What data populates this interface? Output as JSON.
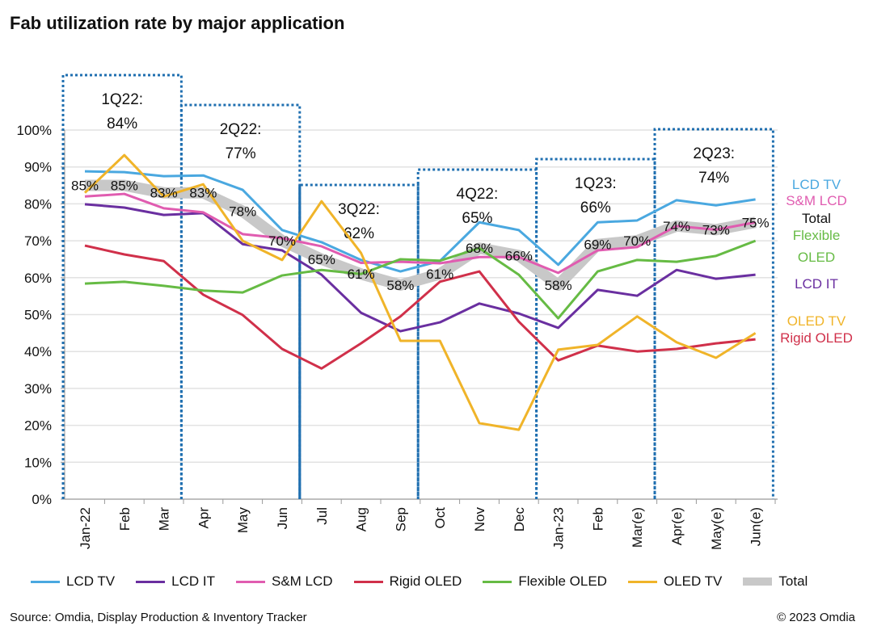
{
  "title": "Fab utilization rate by major application",
  "source": "Source: Omdia, Display Production & Inventory Tracker",
  "copyright": "© 2023 Omdia",
  "chart_data": {
    "type": "line",
    "title": "Fab utilization rate by major application",
    "categories": [
      "Jan-22",
      "Feb",
      "Mar",
      "Apr",
      "May",
      "Jun",
      "Jul",
      "Aug",
      "Sep",
      "Oct",
      "Nov",
      "Dec",
      "Jan-23",
      "Feb",
      "Mar(e)",
      "Apr(e)",
      "May(e)",
      "Jun(e)"
    ],
    "y_ticks": [
      "0%",
      "10%",
      "20%",
      "30%",
      "40%",
      "50%",
      "60%",
      "70%",
      "80%",
      "90%",
      "100%"
    ],
    "ylim": [
      0,
      100
    ],
    "grid": true,
    "legend": "bottom",
    "series": [
      {
        "name": "LCD TV",
        "color": "#4aa8e0",
        "end_label": "LCD TV",
        "values": [
          88.8,
          88.6,
          87.5,
          87.7,
          83.8,
          72.9,
          69.6,
          64.8,
          61.7,
          64.5,
          75,
          72.9,
          63.5,
          75,
          75.5,
          81,
          79.6,
          81.2
        ]
      },
      {
        "name": "LCD IT",
        "color": "#6a2fa0",
        "end_label": "LCD IT",
        "values": [
          79.9,
          79,
          77,
          77.5,
          69.1,
          67.4,
          60.8,
          50.5,
          45.5,
          47.9,
          53,
          50.3,
          46.4,
          56.7,
          55.1,
          62.1,
          59.7,
          60.8
        ]
      },
      {
        "name": "S&M LCD",
        "color": "#e05cb0",
        "end_label": "S&M LCD",
        "values": [
          82,
          82.7,
          78.8,
          77.7,
          71.8,
          70.7,
          68.5,
          64,
          64.3,
          63.9,
          65.6,
          65.6,
          61.3,
          67.4,
          68.3,
          74,
          73,
          75
        ]
      },
      {
        "name": "Rigid OLED",
        "color": "#d0304a",
        "end_label": "Rigid OLED",
        "values": [
          68.7,
          66.3,
          64.5,
          55.4,
          49.9,
          40.7,
          35.4,
          42.2,
          49.5,
          58.9,
          61.7,
          48.1,
          37.6,
          41.6,
          40,
          40.7,
          42.2,
          43.3
        ]
      },
      {
        "name": "Flexible OLED",
        "color": "#66bb44",
        "end_label": "Flexible\nOLED",
        "values": [
          58.4,
          58.9,
          57.8,
          56.5,
          56,
          60.6,
          62.1,
          61,
          65,
          64.6,
          68,
          60.8,
          49,
          61.7,
          64.8,
          64.3,
          65.9,
          70
        ]
      },
      {
        "name": "OLED TV",
        "color": "#f0b429",
        "end_label": "OLED TV",
        "values": [
          83,
          93.2,
          82,
          85.3,
          70,
          64.8,
          80.7,
          66.7,
          42.9,
          42.9,
          20.6,
          18.8,
          40.5,
          41.8,
          49.5,
          42.5,
          38.3,
          45
        ]
      },
      {
        "name": "Total",
        "color": "#c8c8c8",
        "end_label": "Total",
        "values": [
          85,
          85,
          83,
          83,
          78,
          70,
          65,
          61,
          58,
          61,
          68,
          66,
          58,
          69,
          70,
          74,
          73,
          75
        ],
        "data_labels": [
          "85%",
          "85%",
          "83%",
          "83%",
          "78%",
          "70%",
          "65%",
          "61%",
          "58%",
          "61%",
          "68%",
          "66%",
          "58%",
          "69%",
          "70%",
          "74%",
          "73%",
          "75%"
        ]
      }
    ],
    "quarter_annotations": [
      {
        "label": "1Q22:",
        "value": "84%"
      },
      {
        "label": "2Q22:",
        "value": "77%"
      },
      {
        "label": "3Q22:",
        "value": "62%"
      },
      {
        "label": "4Q22:",
        "value": "65%"
      },
      {
        "label": "1Q23:",
        "value": "66%"
      },
      {
        "label": "2Q23:",
        "value": "74%"
      }
    ]
  }
}
